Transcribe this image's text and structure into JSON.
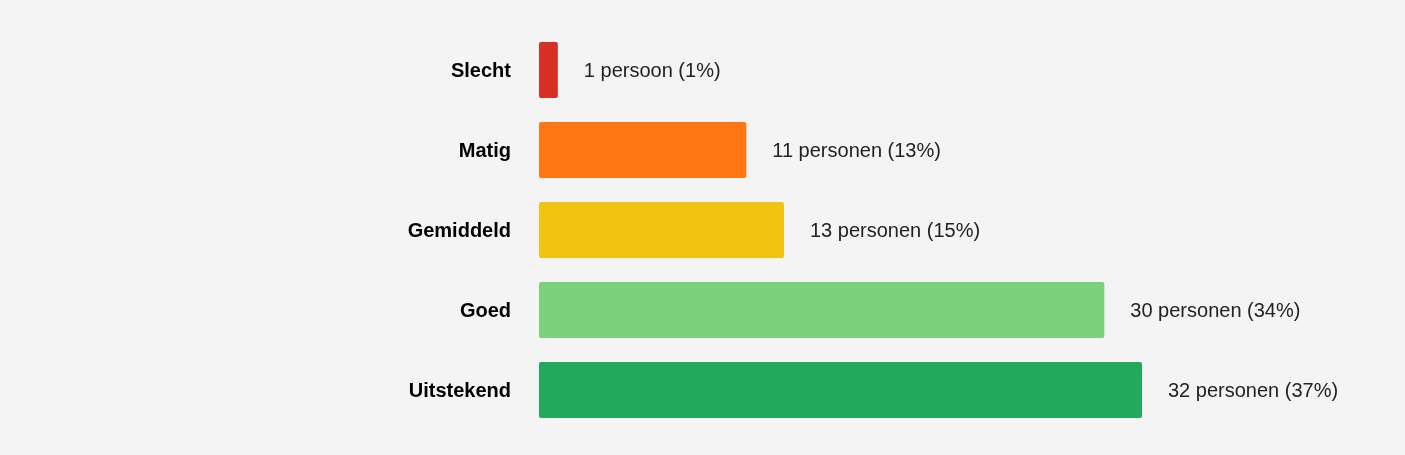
{
  "chart_data": {
    "type": "bar",
    "orientation": "horizontal",
    "categories": [
      "Slecht",
      "Matig",
      "Gemiddeld",
      "Goed",
      "Uitstekend"
    ],
    "values": [
      1,
      11,
      13,
      30,
      32
    ],
    "colors": [
      "#d93025",
      "#ff7613",
      "#f1c40f",
      "#7bd27a",
      "#22aa5c"
    ],
    "value_labels": [
      "1 persoon (1%)",
      "11 personen (13%)",
      "13 personen (15%)",
      "30 personen (34%)",
      "32 personen (37%)"
    ]
  }
}
